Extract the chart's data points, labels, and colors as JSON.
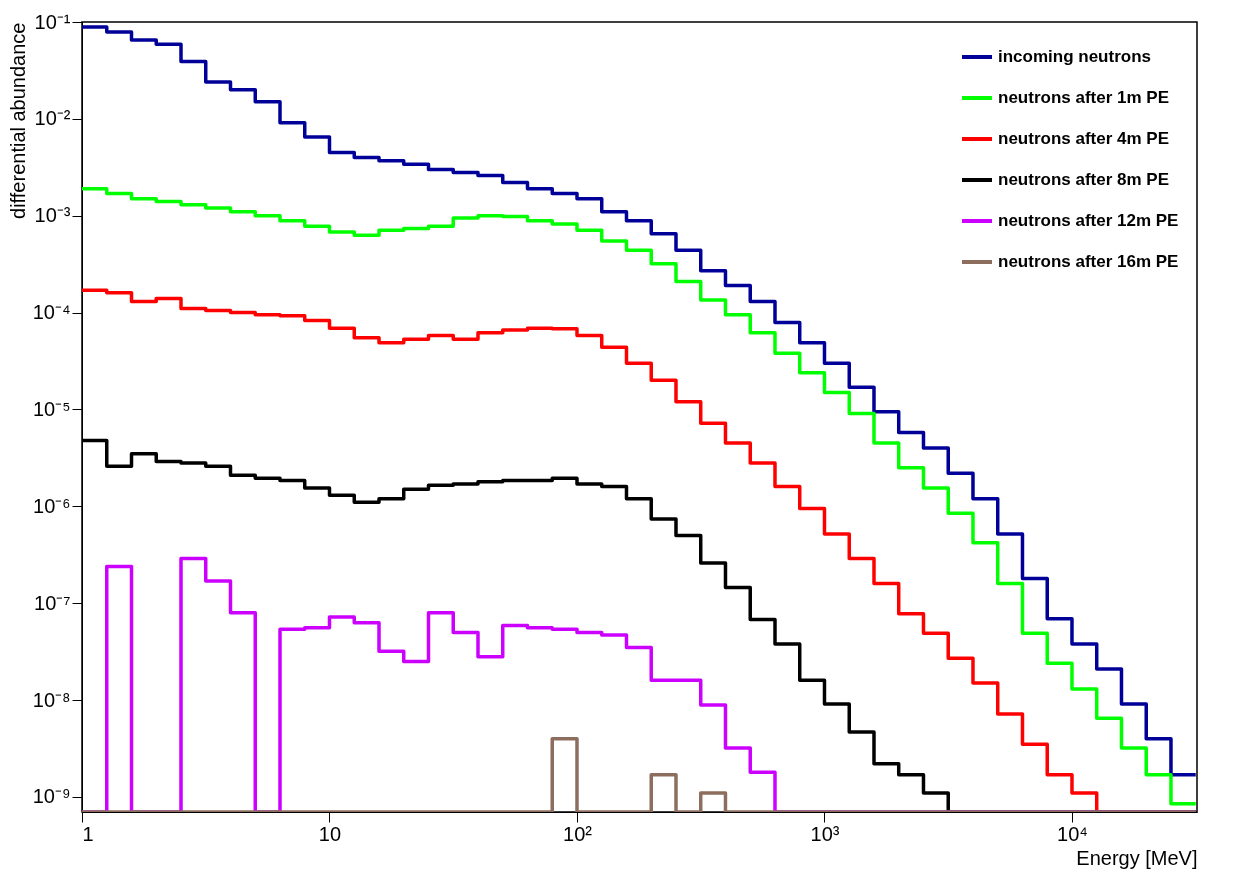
{
  "chart_data": {
    "type": "histogram",
    "xlabel": "Energy [MeV]",
    "ylabel": "differential abundance",
    "bins": [
      1,
      1.259,
      1.585,
      1.995,
      2.512,
      3.162,
      3.981,
      5.012,
      6.31,
      7.943,
      10,
      12.59,
      15.85,
      19.95,
      25.12,
      31.62,
      39.81,
      50.12,
      63.1,
      79.43,
      100,
      125.9,
      158.5,
      199.5,
      251.2,
      316.2,
      398.1,
      501.2,
      631,
      794.3,
      1000,
      1259,
      1585,
      1995,
      2512,
      3162,
      3981,
      5012,
      6310,
      7943,
      10000,
      12589,
      15849,
      19953,
      25119,
      31623
    ],
    "series": [
      {
        "name": "incoming neutrons",
        "color": "#000099",
        "values": [
          0.089,
          0.079,
          0.065,
          0.059,
          0.039,
          0.024,
          0.02,
          0.015,
          0.0091,
          0.0065,
          0.0045,
          0.004,
          0.0037,
          0.0034,
          0.003,
          0.0028,
          0.0026,
          0.0022,
          0.0019,
          0.0017,
          0.0015,
          0.0011,
          0.00089,
          0.00065,
          0.00044,
          0.00027,
          0.00019,
          0.00013,
          7.9e-05,
          4.9e-05,
          3e-05,
          1.7e-05,
          9.5e-06,
          5.8e-06,
          4e-06,
          2.2e-06,
          1.2e-06,
          5.2e-07,
          1.8e-07,
          6.9e-08,
          3.8e-08,
          2.1e-08,
          9.1e-09,
          4e-09,
          1.7e-09
        ]
      },
      {
        "name": "neutrons after 1m PE",
        "color": "#00ff00",
        "values": [
          0.0019,
          0.0017,
          0.0015,
          0.0014,
          0.0013,
          0.0012,
          0.0011,
          0.001,
          0.00089,
          0.00078,
          0.00068,
          0.00063,
          0.00071,
          0.00074,
          0.00078,
          0.00095,
          0.001,
          0.00098,
          0.00089,
          0.00082,
          0.00071,
          0.00055,
          0.00044,
          0.00032,
          0.00021,
          0.000135,
          9.5e-05,
          6.2e-05,
          3.8e-05,
          2.4e-05,
          1.5e-05,
          9.1e-06,
          4.5e-06,
          2.5e-06,
          1.55e-06,
          8.5e-07,
          4.2e-07,
          1.6e-07,
          4.9e-08,
          2.4e-08,
          1.3e-08,
          6.5e-09,
          3.2e-09,
          1.7e-09,
          8.5e-10
        ]
      },
      {
        "name": "neutrons after 4m PE",
        "color": "#ff0000",
        "values": [
          0.00017,
          0.00016,
          0.00013,
          0.00014,
          0.00011,
          0.000105,
          0.0001,
          9.5e-05,
          9.3e-05,
          8.3e-05,
          6.9e-05,
          5.5e-05,
          4.9e-05,
          5.3e-05,
          5.8e-05,
          5.3e-05,
          6.2e-05,
          6.6e-05,
          6.9e-05,
          6.8e-05,
          5.8e-05,
          4.4e-05,
          3e-05,
          2e-05,
          1.2e-05,
          7.2e-06,
          4.5e-06,
          2.8e-06,
          1.6e-06,
          9.5e-07,
          5.2e-07,
          2.9e-07,
          1.6e-07,
          7.8e-08,
          4.9e-08,
          2.7e-08,
          1.5e-08,
          7.2e-09,
          3.5e-09,
          1.7e-09,
          1.1e-09,
          null,
          null,
          null,
          null
        ]
      },
      {
        "name": "neutrons after 8m PE",
        "color": "#000000",
        "values": [
          4.8e-06,
          2.6e-06,
          3.5e-06,
          2.9e-06,
          2.8e-06,
          2.6e-06,
          2.1e-06,
          1.95e-06,
          1.85e-06,
          1.55e-06,
          1.3e-06,
          1.1e-06,
          1.2e-06,
          1.5e-06,
          1.65e-06,
          1.7e-06,
          1.8e-06,
          1.85e-06,
          1.85e-06,
          1.95e-06,
          1.7e-06,
          1.6e-06,
          1.2e-06,
          7.4e-07,
          5e-07,
          2.6e-07,
          1.45e-07,
          6.8e-08,
          3.8e-08,
          1.6e-08,
          9.1e-09,
          4.7e-09,
          2.2e-09,
          1.7e-09,
          1.1e-09,
          null,
          null,
          null,
          null,
          null,
          null,
          null,
          null,
          null,
          null
        ]
      },
      {
        "name": "neutrons after 12m PE",
        "color": "#cc00ff",
        "values": [
          null,
          2.4e-07,
          null,
          null,
          2.9e-07,
          1.7e-07,
          8e-08,
          null,
          5.4e-08,
          5.6e-08,
          7.2e-08,
          6.3e-08,
          3.2e-08,
          2.5e-08,
          8e-08,
          5e-08,
          2.8e-08,
          5.9e-08,
          5.6e-08,
          5.4e-08,
          5e-08,
          4.7e-08,
          3.5e-08,
          1.6e-08,
          1.6e-08,
          8.9e-09,
          3.2e-09,
          1.8e-09,
          null,
          null,
          null,
          null,
          null,
          null,
          null,
          null,
          null,
          null,
          null,
          null,
          null,
          null,
          null,
          null,
          null
        ]
      },
      {
        "name": "neutrons after 16m PE",
        "color": "#8c6d5e",
        "values": [
          null,
          null,
          null,
          null,
          null,
          null,
          null,
          null,
          null,
          null,
          null,
          null,
          null,
          null,
          null,
          null,
          null,
          null,
          null,
          4e-09,
          null,
          null,
          null,
          1.7e-09,
          null,
          1.1e-09,
          null,
          null,
          null,
          null,
          null,
          null,
          null,
          null,
          null,
          null,
          null,
          null,
          null,
          null,
          null,
          null,
          null,
          null,
          null
        ]
      }
    ],
    "log": "xy",
    "xlim": [
      1,
      32000
    ],
    "xticks": [
      1,
      10,
      {
        "value": 100,
        "label": "10²"
      },
      {
        "value": 1000,
        "label": "10³"
      },
      {
        "value": 10000,
        "label": "10⁴"
      }
    ],
    "ylim": [
      7e-10,
      0.1
    ],
    "yticks": [
      {
        "value": 1e-09,
        "label": "10⁻⁹"
      },
      {
        "value": 1e-08,
        "label": "10⁻⁸"
      },
      {
        "value": 1e-07,
        "label": "10⁻⁷"
      },
      {
        "value": 1e-06,
        "label": "10⁻⁶"
      },
      {
        "value": 1e-05,
        "label": "10⁻⁵"
      },
      {
        "value": 0.0001,
        "label": "10⁻⁴"
      },
      {
        "value": 0.001,
        "label": "10⁻³"
      },
      {
        "value": 0.01,
        "label": "10⁻²"
      },
      {
        "value": 0.1,
        "label": "10⁻¹"
      }
    ],
    "grid": false,
    "legend": "top right",
    "line_style": "solid"
  }
}
